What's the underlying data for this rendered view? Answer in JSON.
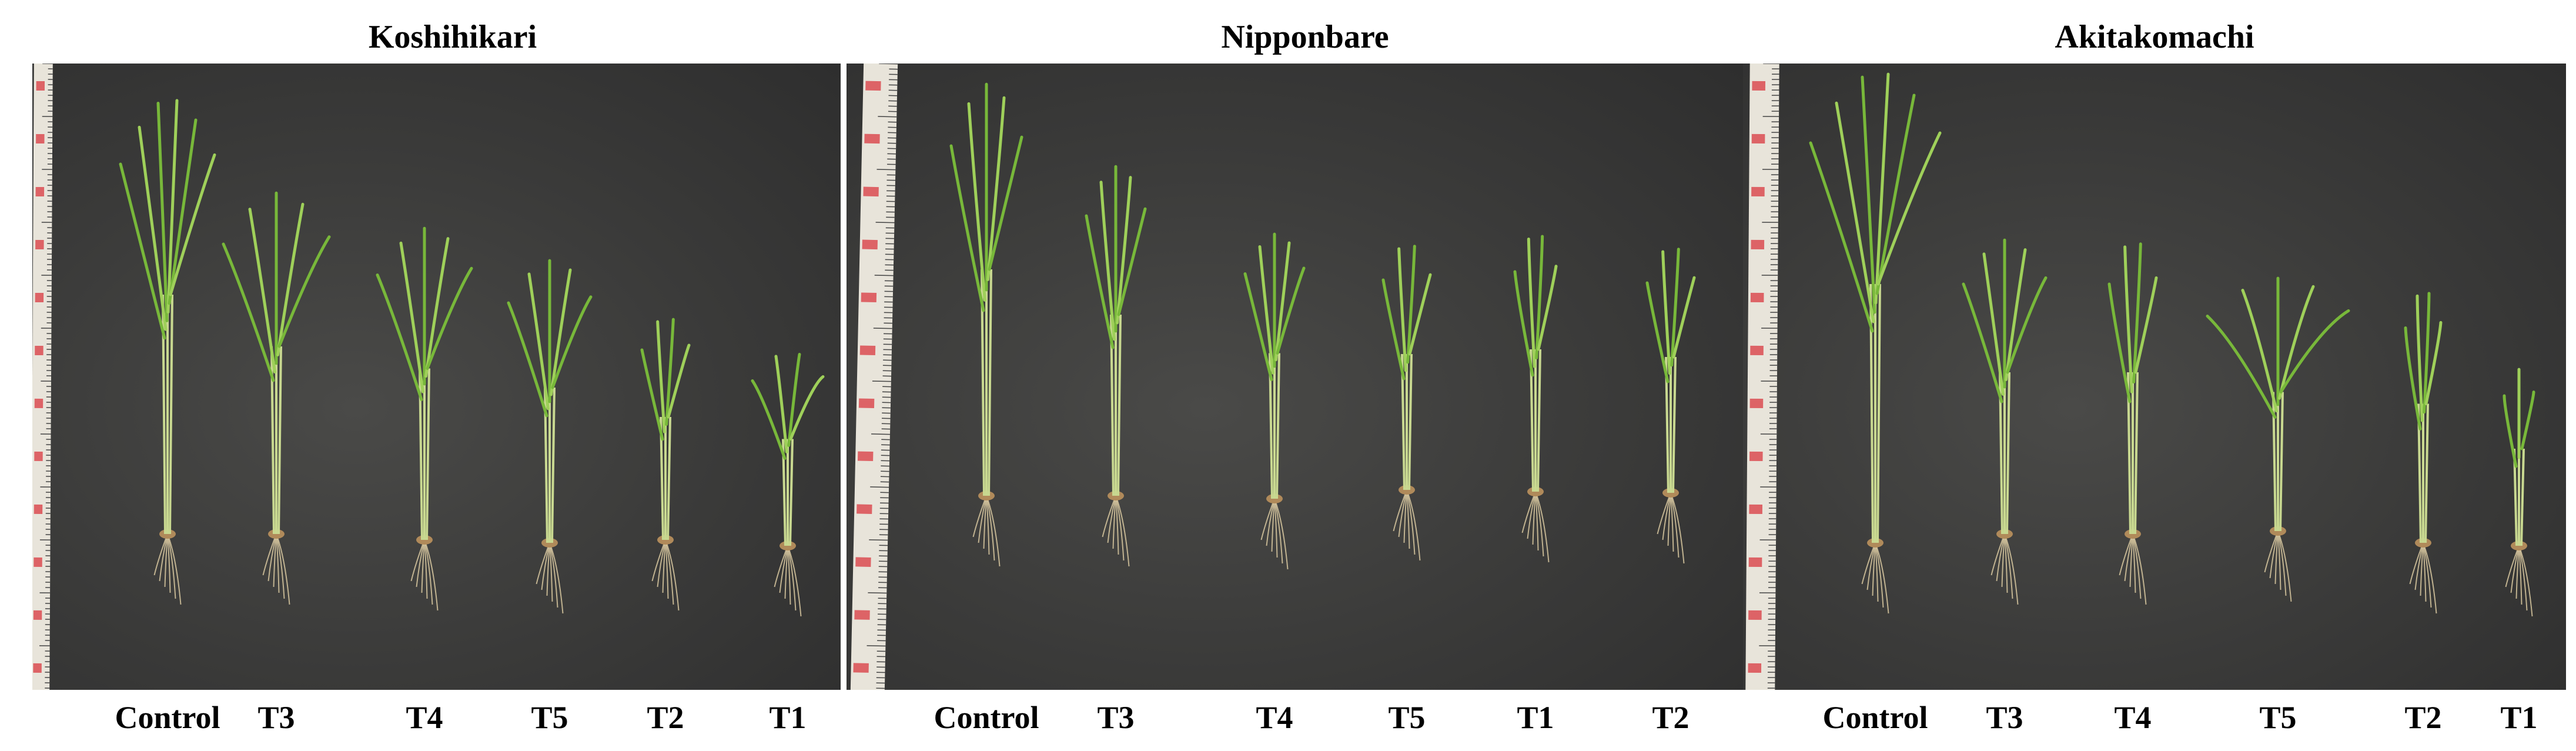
{
  "colors": {
    "background": "#3a3a39",
    "ruler": "#e8e4da",
    "ruler_text": "#5a5a66",
    "ruler_red": "#d9383f",
    "leaf": "#78b83a",
    "leaf_light": "#9fd05a",
    "stem": "#c8d890",
    "root": "#d8c8a0"
  },
  "panels": [
    {
      "title": "Koshihikari",
      "labels": [
        "Control",
        "T3",
        "T4",
        "T5",
        "T2",
        "T1"
      ]
    },
    {
      "title": "Nipponbare",
      "labels": [
        "Control",
        "T3",
        "T4",
        "T5",
        "T1",
        "T2"
      ]
    },
    {
      "title": "Akitakomachi",
      "labels": [
        "Control",
        "T3",
        "T4",
        "T5",
        "T2",
        "T1"
      ]
    }
  ]
}
